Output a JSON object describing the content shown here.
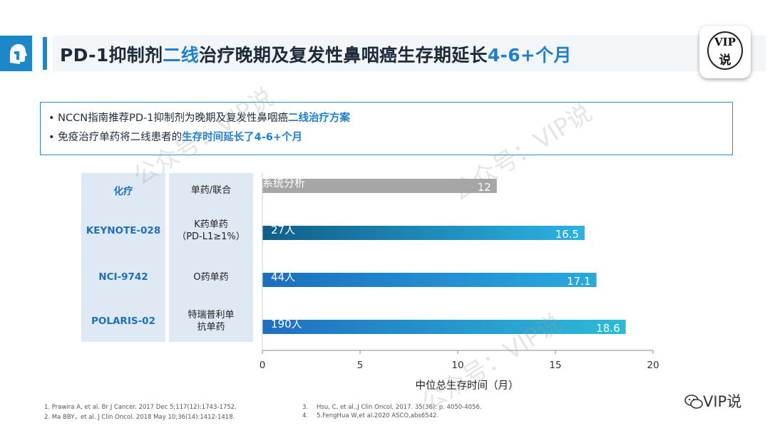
{
  "header": {
    "title_pre": "PD-1抑制剂",
    "title_hl1": "二线",
    "title_mid": "治疗晚期及复发性鼻咽癌生存期延长",
    "title_hl2": "4-6+个月",
    "badge_line1": "VIP",
    "badge_line2": "说"
  },
  "points": [
    {
      "pre": "NCCN指南推荐PD-1抑制剂为晚期及复发性鼻咽癌",
      "hl": "二线治疗方案"
    },
    {
      "pre": "免疫治疗单药将二线患者的",
      "hl": "生存时间延长了4-6+个月"
    }
  ],
  "table": {
    "rows": [
      {
        "trial": "化疗",
        "regimen": "单药/联合"
      },
      {
        "trial": "KEYNOTE-028",
        "regimen": "K药单药",
        "regimen_sub": "（PD-L1≥1%）"
      },
      {
        "trial": "NCI-9742",
        "regimen": "O药单药"
      },
      {
        "trial": "POLARIS-02",
        "regimen": "特瑞普利单",
        "regimen_sub": "抗单药"
      }
    ]
  },
  "chart_data": {
    "type": "bar",
    "orientation": "horizontal",
    "categories": [
      "化疗",
      "KEYNOTE-028",
      "NCI-9742",
      "POLARIS-02"
    ],
    "values": [
      12,
      16.5,
      17.1,
      18.6
    ],
    "bar_labels": [
      "系统分析",
      "27人",
      "44人",
      "190人"
    ],
    "value_labels": [
      "12",
      "16.5",
      "17.1",
      "18.6"
    ],
    "xlabel": "中位总生存时间（月）",
    "xlim": [
      0,
      20
    ],
    "xticks": [
      0,
      5,
      10,
      15,
      20
    ],
    "colors": [
      "#a6a6a6",
      "#1f8fc9",
      "#1f8fc9",
      "#1f8fc9"
    ]
  },
  "footnotes": [
    "1. Prawira A, et al. Br J Cancer. 2017 Dec 5;117(12):1743-1752.",
    "2. Ma BBY，et al. J Clin Oncol. 2018 May 10;36(14):1412-1418.",
    "3.",
    "Hsu, C, et al.,J Clin Oncol, 2017. 35(36): p. 4050-4056.",
    "4.",
    "5.FengHua W,et al.2020 ASCO,abs6542."
  ],
  "watermark": "公众号：VIP说",
  "brand": "VIP说"
}
